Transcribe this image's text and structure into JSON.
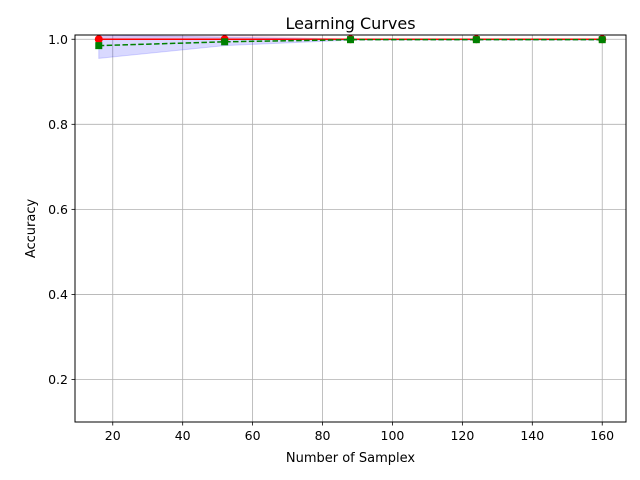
{
  "chart_data": {
    "type": "line",
    "title": "Learning Curves",
    "xlabel": "Number of Samplex",
    "ylabel": "Accuracy",
    "xlim": [
      9.2,
      166.8
    ],
    "ylim": [
      0.1,
      1.01
    ],
    "x_ticks": [
      20,
      40,
      60,
      80,
      100,
      120,
      140,
      160
    ],
    "y_ticks": [
      0.2,
      0.4,
      0.6,
      0.8,
      1.0
    ],
    "grid": true,
    "x": [
      16,
      52,
      88,
      124,
      160
    ],
    "series": [
      {
        "values": [
          1.0,
          1.0,
          1.0,
          1.0,
          1.0
        ],
        "lower": [
          0.999,
          1.0,
          1.0,
          1.0,
          1.0
        ],
        "upper": [
          1.01,
          1.01,
          1.0,
          1.0,
          1.0
        ],
        "color": "#ff0000",
        "band_color": "#ff69b4",
        "marker": "circle",
        "linestyle": "solid"
      },
      {
        "values": [
          0.985,
          0.994,
          0.999,
          0.999,
          0.999
        ],
        "lower": [
          0.955,
          0.985,
          0.998,
          0.998,
          0.998
        ],
        "upper": [
          1.01,
          1.005,
          1.0,
          1.0,
          1.0
        ],
        "color": "#008000",
        "band_color": "#0000ff",
        "marker": "square",
        "linestyle": "dashed"
      }
    ]
  }
}
